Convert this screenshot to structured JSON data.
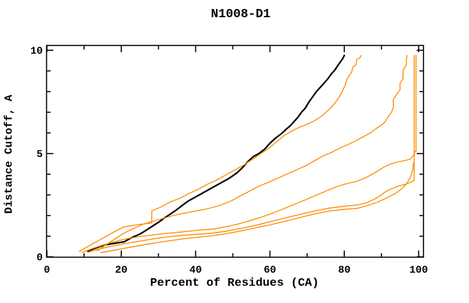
{
  "window": {
    "title": "N1008-D1"
  },
  "chart_data": {
    "type": "line",
    "title": "N1008-D1",
    "xlabel": "Percent of Residues (CA)",
    "ylabel": "Distance Cutoff, A",
    "xlim": [
      0,
      101.4
    ],
    "ylim": [
      0,
      10.25
    ],
    "grid": false,
    "legend": "none",
    "axes_style": "box with inward mirrored ticks",
    "colors": {
      "target_curve": "#000000",
      "other_curves": "#ff8c00",
      "axis": "#000000",
      "background": "#ffffff"
    },
    "xticks": {
      "major": [
        0,
        20,
        40,
        60,
        80,
        100
      ],
      "minor": [
        10,
        30,
        50,
        70,
        90
      ],
      "labels": [
        "0",
        "20",
        "40",
        "60",
        "80",
        "100"
      ]
    },
    "yticks": {
      "major": [
        0,
        5,
        10
      ],
      "minor": [
        1,
        2,
        3,
        4,
        6,
        7,
        8,
        9
      ],
      "labels": [
        "0",
        "5",
        "10"
      ]
    },
    "series": [
      {
        "name": "model-curve-black",
        "color": "#000000",
        "width": 2.3,
        "points": [
          [
            11,
            0.28
          ],
          [
            13,
            0.42
          ],
          [
            15,
            0.55
          ],
          [
            17,
            0.62
          ],
          [
            19,
            0.68
          ],
          [
            20.8,
            0.73
          ],
          [
            23,
            0.95
          ],
          [
            25,
            1.1
          ],
          [
            26.9,
            1.31
          ],
          [
            28.5,
            1.5
          ],
          [
            30,
            1.67
          ],
          [
            31.5,
            1.87
          ],
          [
            33.2,
            2.07
          ],
          [
            34.8,
            2.27
          ],
          [
            36.2,
            2.46
          ],
          [
            38,
            2.7
          ],
          [
            40.5,
            2.95
          ],
          [
            42.5,
            3.15
          ],
          [
            45,
            3.4
          ],
          [
            47,
            3.6
          ],
          [
            49,
            3.8
          ],
          [
            51,
            4.05
          ],
          [
            52.5,
            4.3
          ],
          [
            54,
            4.6
          ],
          [
            55.5,
            4.85
          ],
          [
            57,
            5.0
          ],
          [
            58.5,
            5.2
          ],
          [
            60,
            5.5
          ],
          [
            61.5,
            5.75
          ],
          [
            63,
            5.95
          ],
          [
            64.5,
            6.2
          ],
          [
            65.5,
            6.35
          ],
          [
            66.5,
            6.55
          ],
          [
            67.5,
            6.75
          ],
          [
            68.5,
            7.0
          ],
          [
            69.5,
            7.2
          ],
          [
            70.5,
            7.5
          ],
          [
            71.5,
            7.75
          ],
          [
            72.5,
            8.0
          ],
          [
            73.5,
            8.2
          ],
          [
            74.5,
            8.4
          ],
          [
            75.5,
            8.6
          ],
          [
            76.5,
            8.85
          ],
          [
            77.5,
            9.05
          ],
          [
            78.2,
            9.25
          ],
          [
            79,
            9.45
          ],
          [
            79.6,
            9.6
          ],
          [
            80,
            9.75
          ]
        ]
      },
      {
        "name": "model-curve-orange-1",
        "color": "#ff8c00",
        "width": 1.4,
        "points": [
          [
            8.7,
            0.26
          ],
          [
            11,
            0.5
          ],
          [
            13.5,
            0.75
          ],
          [
            16,
            1.0
          ],
          [
            18.5,
            1.25
          ],
          [
            20.8,
            1.45
          ],
          [
            23,
            1.52
          ],
          [
            25.5,
            1.58
          ],
          [
            28.2,
            1.64
          ],
          [
            28.2,
            2.23
          ],
          [
            30.5,
            2.4
          ],
          [
            33.2,
            2.66
          ],
          [
            36,
            2.85
          ],
          [
            38,
            3.05
          ],
          [
            40.5,
            3.25
          ],
          [
            43,
            3.5
          ],
          [
            45.5,
            3.7
          ],
          [
            48,
            3.95
          ],
          [
            50.5,
            4.2
          ],
          [
            53,
            4.45
          ],
          [
            55.5,
            4.75
          ],
          [
            58,
            5.05
          ],
          [
            60,
            5.3
          ],
          [
            62,
            5.6
          ],
          [
            64,
            5.9
          ],
          [
            65.5,
            6.05
          ],
          [
            67,
            6.2
          ],
          [
            69,
            6.35
          ],
          [
            71,
            6.5
          ],
          [
            73,
            6.7
          ],
          [
            74.5,
            6.9
          ],
          [
            76,
            7.15
          ],
          [
            77.5,
            7.45
          ],
          [
            78.5,
            7.7
          ],
          [
            79.3,
            7.95
          ],
          [
            80.2,
            8.3
          ],
          [
            80.7,
            8.6
          ],
          [
            82,
            8.95
          ],
          [
            82.3,
            9.2
          ],
          [
            83.2,
            9.3
          ],
          [
            83.3,
            9.55
          ],
          [
            84.3,
            9.65
          ],
          [
            84.5,
            9.75
          ]
        ]
      },
      {
        "name": "model-curve-orange-2",
        "color": "#ff8c00",
        "width": 1.4,
        "points": [
          [
            13.5,
            0.3
          ],
          [
            16.5,
            0.65
          ],
          [
            19,
            0.95
          ],
          [
            20.8,
            1.15
          ],
          [
            23,
            1.35
          ],
          [
            25.5,
            1.55
          ],
          [
            28,
            1.7
          ],
          [
            31,
            1.85
          ],
          [
            34,
            2.0
          ],
          [
            37,
            2.12
          ],
          [
            40,
            2.22
          ],
          [
            42.5,
            2.3
          ],
          [
            44.8,
            2.4
          ],
          [
            47,
            2.52
          ],
          [
            49.5,
            2.7
          ],
          [
            52,
            2.95
          ],
          [
            54.5,
            3.18
          ],
          [
            57,
            3.42
          ],
          [
            59.5,
            3.6
          ],
          [
            62,
            3.8
          ],
          [
            64.5,
            4.0
          ],
          [
            67,
            4.2
          ],
          [
            69.5,
            4.4
          ],
          [
            72,
            4.65
          ],
          [
            74.2,
            4.88
          ],
          [
            76.5,
            5.05
          ],
          [
            79,
            5.28
          ],
          [
            81.5,
            5.48
          ],
          [
            83.6,
            5.67
          ],
          [
            85.5,
            5.85
          ],
          [
            87,
            6.0
          ],
          [
            88.5,
            6.2
          ],
          [
            90,
            6.38
          ],
          [
            90.8,
            6.5
          ],
          [
            91.8,
            6.78
          ],
          [
            92.7,
            7.0
          ],
          [
            93.2,
            7.25
          ],
          [
            93.2,
            7.62
          ],
          [
            94,
            7.85
          ],
          [
            95,
            8.1
          ],
          [
            95,
            8.42
          ],
          [
            95.8,
            8.62
          ],
          [
            95.8,
            9.05
          ],
          [
            96.7,
            9.3
          ],
          [
            96.7,
            9.55
          ],
          [
            96.9,
            9.75
          ]
        ]
      },
      {
        "name": "model-curve-orange-3",
        "color": "#ff8c00",
        "width": 1.4,
        "points": [
          [
            9.5,
            0.22
          ],
          [
            12.5,
            0.42
          ],
          [
            15.5,
            0.6
          ],
          [
            18.5,
            0.75
          ],
          [
            21.5,
            0.88
          ],
          [
            25,
            0.98
          ],
          [
            28.5,
            1.06
          ],
          [
            32,
            1.13
          ],
          [
            36,
            1.2
          ],
          [
            40,
            1.28
          ],
          [
            44.8,
            1.35
          ],
          [
            48,
            1.45
          ],
          [
            51,
            1.57
          ],
          [
            54,
            1.72
          ],
          [
            57,
            1.88
          ],
          [
            60,
            2.07
          ],
          [
            63,
            2.28
          ],
          [
            66,
            2.5
          ],
          [
            69,
            2.72
          ],
          [
            72,
            2.95
          ],
          [
            75,
            3.18
          ],
          [
            78,
            3.4
          ],
          [
            80.8,
            3.55
          ],
          [
            83.6,
            3.67
          ],
          [
            86,
            3.85
          ],
          [
            88.5,
            4.1
          ],
          [
            90.8,
            4.36
          ],
          [
            92.5,
            4.5
          ],
          [
            94.5,
            4.6
          ],
          [
            96.5,
            4.67
          ],
          [
            97.9,
            4.75
          ],
          [
            98.9,
            5.0
          ],
          [
            98.9,
            5.1
          ],
          [
            99.3,
            5.1
          ],
          [
            99.3,
            9.75
          ]
        ]
      },
      {
        "name": "model-curve-orange-4",
        "color": "#ff8c00",
        "width": 1.4,
        "points": [
          [
            11,
            0.22
          ],
          [
            14,
            0.38
          ],
          [
            17.5,
            0.52
          ],
          [
            21,
            0.64
          ],
          [
            25,
            0.76
          ],
          [
            29,
            0.88
          ],
          [
            33,
            0.98
          ],
          [
            37,
            1.05
          ],
          [
            41,
            1.1
          ],
          [
            44.8,
            1.15
          ],
          [
            48.5,
            1.25
          ],
          [
            52,
            1.37
          ],
          [
            56,
            1.52
          ],
          [
            60,
            1.7
          ],
          [
            64,
            1.88
          ],
          [
            68,
            2.05
          ],
          [
            72,
            2.22
          ],
          [
            76,
            2.36
          ],
          [
            80,
            2.45
          ],
          [
            83.6,
            2.52
          ],
          [
            86,
            2.62
          ],
          [
            88,
            2.78
          ],
          [
            90,
            3.0
          ],
          [
            90.8,
            3.12
          ],
          [
            92.5,
            3.28
          ],
          [
            94.5,
            3.42
          ],
          [
            96.5,
            3.52
          ],
          [
            98,
            3.62
          ],
          [
            98.8,
            3.7
          ],
          [
            98.8,
            9.75
          ]
        ]
      },
      {
        "name": "model-curve-orange-5",
        "color": "#ff8c00",
        "width": 1.4,
        "points": [
          [
            14.5,
            0.2
          ],
          [
            17.5,
            0.3
          ],
          [
            21,
            0.42
          ],
          [
            25,
            0.55
          ],
          [
            29,
            0.67
          ],
          [
            33,
            0.78
          ],
          [
            37,
            0.88
          ],
          [
            41,
            0.96
          ],
          [
            44.8,
            1.03
          ],
          [
            48.5,
            1.13
          ],
          [
            52,
            1.25
          ],
          [
            56,
            1.4
          ],
          [
            60,
            1.55
          ],
          [
            64,
            1.72
          ],
          [
            68,
            1.9
          ],
          [
            72,
            2.08
          ],
          [
            76,
            2.22
          ],
          [
            80,
            2.3
          ],
          [
            83.6,
            2.35
          ],
          [
            86.5,
            2.5
          ],
          [
            89,
            2.65
          ],
          [
            90.8,
            2.8
          ],
          [
            92.5,
            2.95
          ],
          [
            94,
            3.1
          ],
          [
            95.5,
            3.3
          ],
          [
            96.8,
            3.55
          ],
          [
            97.8,
            3.85
          ],
          [
            98.4,
            4.2
          ],
          [
            98.6,
            4.55
          ]
        ]
      }
    ]
  }
}
